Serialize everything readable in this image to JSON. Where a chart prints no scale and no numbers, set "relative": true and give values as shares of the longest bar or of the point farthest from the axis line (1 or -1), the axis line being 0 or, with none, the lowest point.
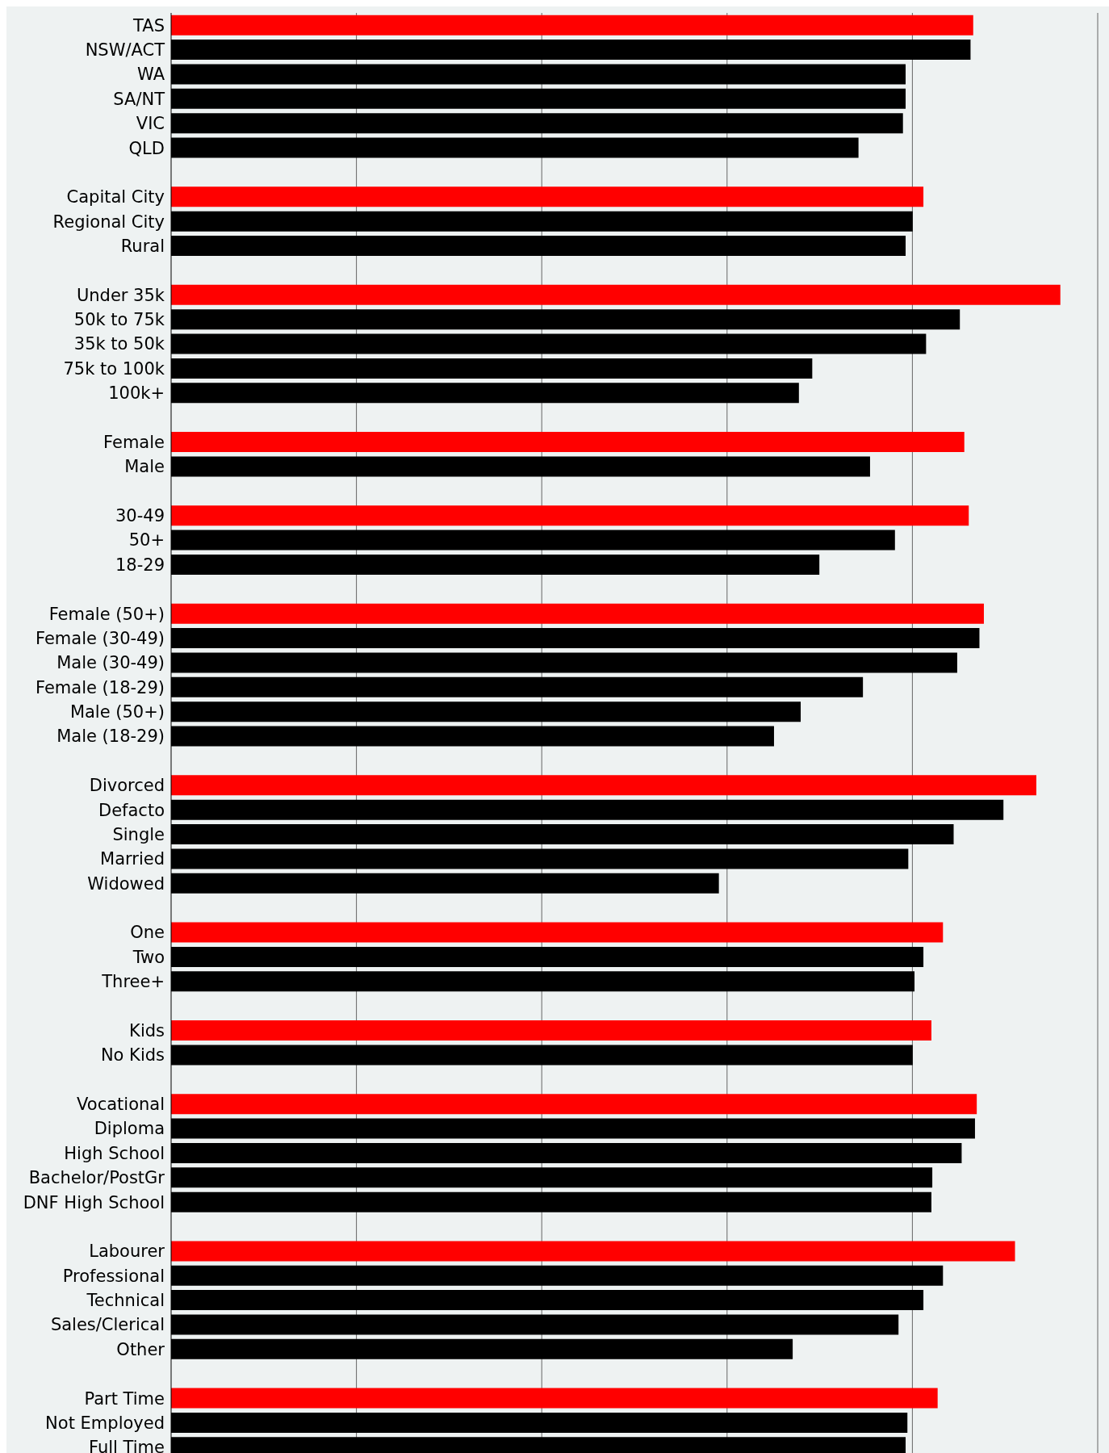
{
  "chart_data": {
    "type": "bar",
    "orientation": "horizontal",
    "relative": true,
    "grid": "x",
    "legend": false,
    "categories": [
      "TAS",
      "NSW/ACT",
      "WA",
      "SA/NT",
      "VIC",
      "QLD",
      null,
      "Capital City",
      "Regional City",
      "Rural",
      null,
      "Under 35k",
      "50k to 75k",
      "35k to 50k",
      "75k to 100k",
      "100k+",
      null,
      "Female",
      "Male",
      null,
      "30-49",
      "50+",
      "18-29",
      null,
      "Female (50+)",
      "Female (30-49)",
      "Male (30-49)",
      "Female (18-29)",
      "Male (50+)",
      "Male (18-29)",
      null,
      "Divorced",
      "Defacto",
      "Single",
      "Married",
      "Widowed",
      null,
      "One",
      "Two",
      "Three+",
      null,
      "Kids",
      "No Kids",
      null,
      "Vocational",
      "Diploma",
      "High School",
      "Bachelor/PostGr",
      "DNF High School",
      null,
      "Labourer",
      "Professional",
      "Technical",
      "Sales/Clerical",
      "Other",
      null,
      "Part Time",
      "Not Employed",
      "Full Time"
    ],
    "values": [
      0.902,
      0.899,
      0.826,
      0.826,
      0.823,
      0.773,
      null,
      0.846,
      0.834,
      0.826,
      null,
      1,
      0.887,
      0.849,
      0.721,
      0.706,
      null,
      0.892,
      0.786,
      null,
      0.897,
      0.814,
      0.729,
      null,
      0.914,
      0.909,
      0.884,
      0.778,
      0.708,
      0.678,
      null,
      0.973,
      0.936,
      0.88,
      0.829,
      0.616,
      null,
      0.868,
      0.846,
      0.836,
      null,
      0.855,
      0.834,
      null,
      0.906,
      0.904,
      0.889,
      0.856,
      0.855,
      null,
      0.949,
      0.868,
      0.846,
      0.818,
      0.699,
      null,
      0.862,
      0.828,
      0.826
    ],
    "colors": [
      "#ff0000",
      "#000000",
      "#000000",
      "#000000",
      "#000000",
      "#000000",
      null,
      "#ff0000",
      "#000000",
      "#000000",
      null,
      "#ff0000",
      "#000000",
      "#000000",
      "#000000",
      "#000000",
      null,
      "#ff0000",
      "#000000",
      null,
      "#ff0000",
      "#000000",
      "#000000",
      null,
      "#ff0000",
      "#000000",
      "#000000",
      "#000000",
      "#000000",
      "#000000",
      null,
      "#ff0000",
      "#000000",
      "#000000",
      "#000000",
      "#000000",
      null,
      "#ff0000",
      "#000000",
      "#000000",
      null,
      "#ff0000",
      "#000000",
      null,
      "#ff0000",
      "#000000",
      "#000000",
      "#000000",
      "#000000",
      null,
      "#ff0000",
      "#000000",
      "#000000",
      "#000000",
      "#000000",
      null,
      "#ff0000",
      "#000000",
      "#000000"
    ]
  }
}
